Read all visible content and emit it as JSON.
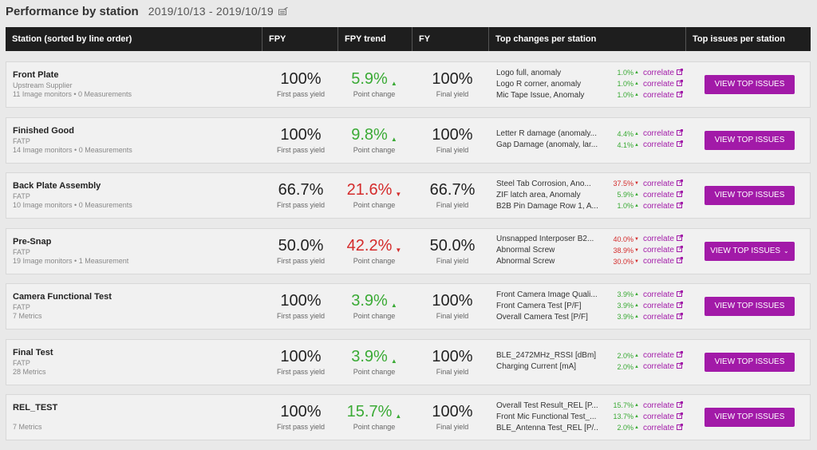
{
  "page": {
    "title": "Performance by station",
    "date_range": "2019/10/13 - 2019/10/19",
    "date_icon": "calendar-edit-icon"
  },
  "columns": [
    "Station (sorted by line order)",
    "FPY",
    "FPY trend",
    "FY",
    "Top changes per station",
    "Top issues per station"
  ],
  "captions": {
    "fpy": "First pass yield",
    "trend": "Point change",
    "fy": "Final yield"
  },
  "correlate_label": "correlate",
  "colors": {
    "up": "#3aaa35",
    "down": "#d42b2b",
    "accent": "#a21aa8",
    "header_bg": "#1e1e1e"
  },
  "stations": [
    {
      "name": "Front Plate",
      "sub": "Upstream Supplier",
      "meta": "11 Image monitors • 0 Measurements",
      "fpy": "100%",
      "trend": "5.9%",
      "trend_dir": "up",
      "fy": "100%",
      "changes": [
        {
          "label": "Logo full, anomaly",
          "value": "1.0%",
          "dir": "up"
        },
        {
          "label": "Logo R corner, anomaly",
          "value": "1.0%",
          "dir": "up"
        },
        {
          "label": "Mic Tape Issue, Anomaly",
          "value": "1.0%",
          "dir": "up"
        }
      ],
      "button": "VIEW TOP ISSUES",
      "button_chevron": ""
    },
    {
      "name": "Finished Good",
      "sub": "FATP",
      "meta": "14 Image monitors • 0 Measurements",
      "fpy": "100%",
      "trend": "9.8%",
      "trend_dir": "up",
      "fy": "100%",
      "changes": [
        {
          "label": "Letter R damage (anomaly...",
          "value": "4.4%",
          "dir": "up"
        },
        {
          "label": "Gap Damage (anomaly, lar...",
          "value": "4.1%",
          "dir": "up"
        }
      ],
      "button": "VIEW TOP ISSUES",
      "button_chevron": ""
    },
    {
      "name": "Back Plate Assembly",
      "sub": "FATP",
      "meta": "10 Image monitors • 0 Measurements",
      "fpy": "66.7%",
      "trend": "21.6%",
      "trend_dir": "down",
      "fy": "66.7%",
      "changes": [
        {
          "label": "Steel Tab Corrosion, Ano...",
          "value": "37.5%",
          "dir": "down"
        },
        {
          "label": "ZIF latch area, Anomaly",
          "value": "5.9%",
          "dir": "up"
        },
        {
          "label": "B2B Pin Damage Row 1, A...",
          "value": "1.0%",
          "dir": "up"
        }
      ],
      "button": "VIEW TOP ISSUES",
      "button_chevron": ""
    },
    {
      "name": "Pre-Snap",
      "sub": "FATP",
      "meta": "19 Image monitors • 1 Measurement",
      "fpy": "50.0%",
      "trend": "42.2%",
      "trend_dir": "down",
      "fy": "50.0%",
      "changes": [
        {
          "label": "Unsnapped Interposer B2...",
          "value": "40.0%",
          "dir": "down"
        },
        {
          "label": "Abnormal Screw",
          "value": "38.9%",
          "dir": "down"
        },
        {
          "label": "Abnormal Screw",
          "value": "30.0%",
          "dir": "down"
        }
      ],
      "button": "VIEW TOP ISSUES",
      "button_chevron": "⌄"
    },
    {
      "name": "Camera Functional Test",
      "sub": "FATP",
      "meta": "7 Metrics",
      "fpy": "100%",
      "trend": "3.9%",
      "trend_dir": "up",
      "fy": "100%",
      "changes": [
        {
          "label": "Front Camera Image Quali...",
          "value": "3.9%",
          "dir": "up"
        },
        {
          "label": "Front Camera Test [P/F]",
          "value": "3.9%",
          "dir": "up"
        },
        {
          "label": "Overall Camera Test [P/F]",
          "value": "3.9%",
          "dir": "up"
        }
      ],
      "button": "VIEW TOP ISSUES",
      "button_chevron": ""
    },
    {
      "name": "Final Test",
      "sub": "FATP",
      "meta": "28 Metrics",
      "fpy": "100%",
      "trend": "3.9%",
      "trend_dir": "up",
      "fy": "100%",
      "changes": [
        {
          "label": "BLE_2472MHz_RSSI [dBm]",
          "value": "2.0%",
          "dir": "up"
        },
        {
          "label": "Charging Current [mA]",
          "value": "2.0%",
          "dir": "up"
        }
      ],
      "button": "VIEW TOP ISSUES",
      "button_chevron": ""
    },
    {
      "name": "REL_TEST",
      "sub": "",
      "meta": "7 Metrics",
      "fpy": "100%",
      "trend": "15.7%",
      "trend_dir": "up",
      "fy": "100%",
      "changes": [
        {
          "label": "Overall Test Result_REL [P...",
          "value": "15.7%",
          "dir": "up"
        },
        {
          "label": "Front Mic Functional Test_...",
          "value": "13.7%",
          "dir": "up"
        },
        {
          "label": "BLE_Antenna Test_REL [P/...",
          "value": "2.0%",
          "dir": "up"
        }
      ],
      "button": "VIEW TOP ISSUES",
      "button_chevron": ""
    }
  ]
}
